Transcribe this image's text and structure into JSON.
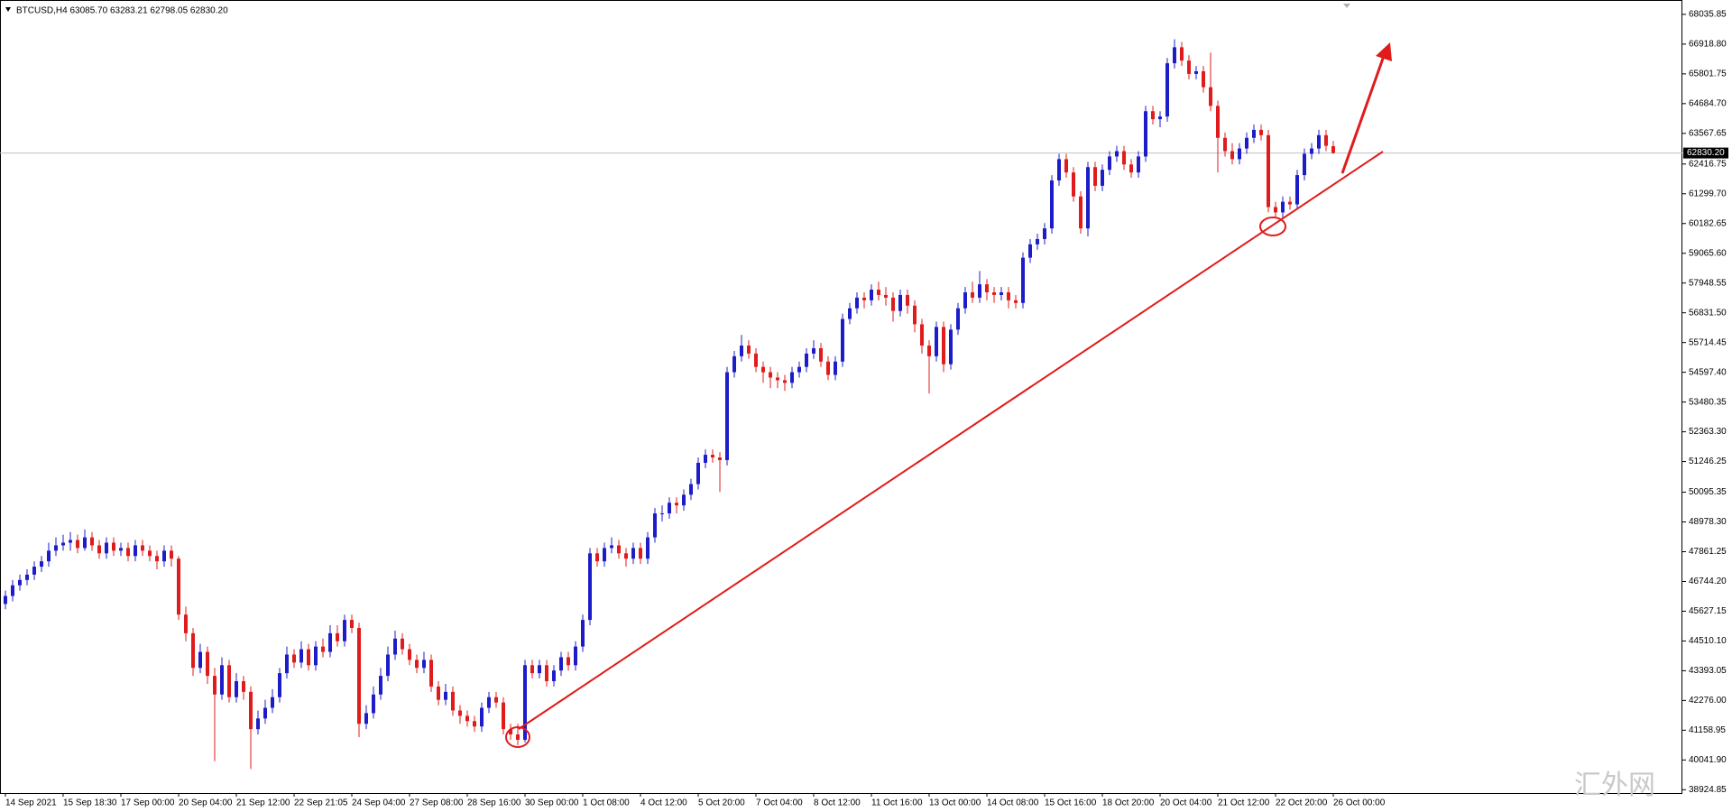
{
  "chart_data": {
    "type": "candlestick",
    "header": "BTCUSD,H4  63085.70 63283.21 62798.05 62830.20",
    "watermark": "汇外网",
    "bull_color": "#1c1cc8",
    "bear_color": "#e01b1b",
    "ylim": [
      38800,
      68575
    ],
    "yticks": [
      38924.85,
      {
        "value": 40041.9,
        "label": "40041.90"
      },
      41158.95,
      {
        "value": 42276,
        "label": "42276.00"
      },
      43393.05,
      {
        "value": 44510.1,
        "label": "44510.10"
      },
      45627.15,
      {
        "value": 46744.2,
        "label": "46744.20"
      },
      47861.25,
      {
        "value": 48978.3,
        "label": "48978.30"
      },
      50095.35,
      {
        "value": 51246.25,
        "label": "51246.25"
      },
      {
        "value": 52363.3,
        "label": "52363.30"
      },
      53480.35,
      {
        "value": 54597.4,
        "label": "54597.40"
      },
      55714.45,
      {
        "value": 56831.5,
        "label": "56831.50"
      },
      57948.55,
      {
        "value": 59065.6,
        "label": "59065.60"
      },
      60182.65,
      {
        "value": 61299.7,
        "label": "61299.70"
      },
      62416.75,
      63567.65,
      {
        "value": 64684.7,
        "label": "64684.70"
      },
      65801.75,
      {
        "value": 66918.8,
        "label": "66918.80"
      },
      68035.85
    ],
    "price_line": {
      "value": 62830.2,
      "label": "62830.20"
    },
    "categories": [
      "14 Sep 2021",
      null,
      null,
      null,
      null,
      null,
      null,
      null,
      "15 Sep 18:30",
      null,
      null,
      null,
      null,
      null,
      null,
      null,
      "17 Sep 00:00",
      null,
      null,
      null,
      null,
      null,
      null,
      null,
      "20 Sep 04:00",
      null,
      null,
      null,
      null,
      null,
      null,
      null,
      "21 Sep 12:00",
      null,
      null,
      null,
      null,
      null,
      null,
      null,
      "22 Sep 21:05",
      null,
      null,
      null,
      null,
      null,
      null,
      null,
      "24 Sep 04:00",
      null,
      null,
      null,
      null,
      null,
      null,
      null,
      "27 Sep 08:00",
      null,
      null,
      null,
      null,
      null,
      null,
      null,
      "28 Sep 16:00",
      null,
      null,
      null,
      null,
      null,
      null,
      null,
      "30 Sep 00:00",
      null,
      null,
      null,
      null,
      null,
      null,
      null,
      "1 Oct 08:00",
      null,
      null,
      null,
      null,
      null,
      null,
      null,
      "4 Oct 12:00",
      null,
      null,
      null,
      null,
      null,
      null,
      null,
      "5 Oct 20:00",
      null,
      null,
      null,
      null,
      null,
      null,
      null,
      "7 Oct 04:00",
      null,
      null,
      null,
      null,
      null,
      null,
      null,
      "8 Oct 12:00",
      null,
      null,
      null,
      null,
      null,
      null,
      null,
      "11 Oct 16:00",
      null,
      null,
      null,
      null,
      null,
      null,
      null,
      "13 Oct 00:00",
      null,
      null,
      null,
      null,
      null,
      null,
      null,
      "14 Oct 08:00",
      null,
      null,
      null,
      null,
      null,
      null,
      null,
      "15 Oct 16:00",
      null,
      null,
      null,
      null,
      null,
      null,
      null,
      "18 Oct 20:00",
      null,
      null,
      null,
      null,
      null,
      null,
      null,
      "20 Oct 04:00",
      null,
      null,
      null,
      null,
      null,
      null,
      null,
      "21 Oct 12:00",
      null,
      null,
      null,
      null,
      null,
      null,
      null,
      "22 Oct 20:00",
      null,
      null,
      null,
      null,
      null,
      null,
      null,
      "26 Oct 00:00"
    ],
    "ohlc": [
      [
        45900,
        46400,
        45700,
        46200
      ],
      [
        46200,
        46800,
        46000,
        46600
      ],
      [
        46600,
        47000,
        46400,
        46800
      ],
      [
        46800,
        47200,
        46600,
        47000
      ],
      [
        47000,
        47500,
        46800,
        47300
      ],
      [
        47300,
        47700,
        47100,
        47500
      ],
      [
        47500,
        48200,
        47300,
        47900
      ],
      [
        47900,
        48400,
        47700,
        48100
      ],
      [
        48100,
        48500,
        47900,
        48200
      ],
      [
        48200,
        48600,
        47900,
        48300
      ],
      [
        48300,
        48500,
        47800,
        48000
      ],
      [
        48000,
        48700,
        47900,
        48400
      ],
      [
        48400,
        48600,
        47900,
        48100
      ],
      [
        48100,
        48300,
        47600,
        47800
      ],
      [
        47800,
        48400,
        47600,
        48200
      ],
      [
        48200,
        48400,
        47700,
        47900
      ],
      [
        47900,
        48200,
        47700,
        48000
      ],
      [
        48000,
        48200,
        47500,
        47700
      ],
      [
        47700,
        48300,
        47500,
        48100
      ],
      [
        48100,
        48300,
        47700,
        47900
      ],
      [
        47900,
        48100,
        47500,
        47700
      ],
      [
        47700,
        47900,
        47200,
        47500
      ],
      [
        47500,
        48100,
        47300,
        47900
      ],
      [
        47900,
        48100,
        47300,
        47600
      ],
      [
        47600,
        47700,
        45300,
        45500
      ],
      [
        45500,
        45800,
        44500,
        44800
      ],
      [
        44800,
        45000,
        43200,
        43500
      ],
      [
        43500,
        44400,
        43300,
        44100
      ],
      [
        44100,
        44300,
        42900,
        43200
      ],
      [
        43200,
        43500,
        40000,
        42500
      ],
      [
        42500,
        43900,
        42300,
        43600
      ],
      [
        43600,
        43800,
        42200,
        42400
      ],
      [
        42400,
        43300,
        42200,
        43000
      ],
      [
        43000,
        43200,
        42300,
        42600
      ],
      [
        42600,
        42800,
        39700,
        41200
      ],
      [
        41200,
        41900,
        41000,
        41600
      ],
      [
        41600,
        42300,
        41400,
        42000
      ],
      [
        42000,
        42700,
        41800,
        42400
      ],
      [
        42400,
        43500,
        42200,
        43300
      ],
      [
        43300,
        44300,
        43100,
        44000
      ],
      [
        44000,
        44200,
        43500,
        43700
      ],
      [
        43700,
        44500,
        43500,
        44200
      ],
      [
        44200,
        44400,
        43400,
        43600
      ],
      [
        43600,
        44500,
        43400,
        44300
      ],
      [
        44300,
        44600,
        43900,
        44100
      ],
      [
        44100,
        45100,
        43900,
        44800
      ],
      [
        44800,
        45100,
        44300,
        44500
      ],
      [
        44500,
        45500,
        44300,
        45300
      ],
      [
        45300,
        45500,
        44800,
        45000
      ],
      [
        45000,
        45200,
        40900,
        41400
      ],
      [
        41400,
        42100,
        41200,
        41800
      ],
      [
        41800,
        42800,
        41600,
        42500
      ],
      [
        42500,
        43500,
        42300,
        43200
      ],
      [
        43200,
        44300,
        43000,
        44000
      ],
      [
        44000,
        44900,
        43800,
        44600
      ],
      [
        44600,
        44800,
        44000,
        44200
      ],
      [
        44200,
        44400,
        43600,
        43800
      ],
      [
        43800,
        44000,
        43300,
        43500
      ],
      [
        43500,
        44100,
        43300,
        43800
      ],
      [
        43800,
        44000,
        42600,
        42800
      ],
      [
        42800,
        43000,
        42100,
        42300
      ],
      [
        42300,
        42900,
        42100,
        42600
      ],
      [
        42600,
        42800,
        41700,
        41900
      ],
      [
        41900,
        42100,
        41400,
        41700
      ],
      [
        41700,
        41900,
        41300,
        41500
      ],
      [
        41500,
        41700,
        41100,
        41300
      ],
      [
        41300,
        42200,
        41100,
        42000
      ],
      [
        42000,
        42600,
        41800,
        42400
      ],
      [
        42400,
        42600,
        42000,
        42200
      ],
      [
        42200,
        42400,
        41000,
        41200
      ],
      [
        41200,
        41400,
        40800,
        41000
      ],
      [
        41000,
        41400,
        40600,
        40800
      ],
      [
        40800,
        43800,
        40700,
        43600
      ],
      [
        43600,
        43800,
        43100,
        43300
      ],
      [
        43300,
        43800,
        43100,
        43600
      ],
      [
        43600,
        43800,
        42800,
        43000
      ],
      [
        43000,
        43600,
        42800,
        43400
      ],
      [
        43400,
        44100,
        43200,
        43900
      ],
      [
        43900,
        44100,
        43400,
        43600
      ],
      [
        43600,
        44500,
        43400,
        44300
      ],
      [
        44300,
        45500,
        44100,
        45300
      ],
      [
        45300,
        48000,
        45100,
        47800
      ],
      [
        47800,
        48000,
        47300,
        47500
      ],
      [
        47500,
        48200,
        47300,
        48000
      ],
      [
        48000,
        48400,
        47800,
        48100
      ],
      [
        48100,
        48300,
        47600,
        47800
      ],
      [
        47800,
        48000,
        47300,
        47600
      ],
      [
        47600,
        48200,
        47400,
        48000
      ],
      [
        48000,
        48200,
        47400,
        47600
      ],
      [
        47600,
        48600,
        47400,
        48400
      ],
      [
        48400,
        49500,
        48200,
        49300
      ],
      [
        49300,
        49600,
        49000,
        49300
      ],
      [
        49300,
        49900,
        49100,
        49700
      ],
      [
        49700,
        49900,
        49300,
        49600
      ],
      [
        49600,
        50200,
        49400,
        50000
      ],
      [
        50000,
        50600,
        49800,
        50400
      ],
      [
        50400,
        51400,
        50200,
        51200
      ],
      [
        51200,
        51700,
        51000,
        51500
      ],
      [
        51500,
        51700,
        51200,
        51400
      ],
      [
        51400,
        51600,
        50100,
        51300
      ],
      [
        51300,
        54800,
        51100,
        54600
      ],
      [
        54600,
        55400,
        54400,
        55200
      ],
      [
        55200,
        56000,
        55000,
        55600
      ],
      [
        55600,
        55800,
        55100,
        55300
      ],
      [
        55300,
        55500,
        54600,
        54800
      ],
      [
        54800,
        55000,
        54200,
        54600
      ],
      [
        54600,
        54800,
        54000,
        54400
      ],
      [
        54400,
        54600,
        54000,
        54300
      ],
      [
        54300,
        54500,
        53900,
        54200
      ],
      [
        54200,
        54800,
        54000,
        54600
      ],
      [
        54600,
        55000,
        54400,
        54800
      ],
      [
        54800,
        55500,
        54600,
        55300
      ],
      [
        55300,
        55800,
        55100,
        55500
      ],
      [
        55500,
        55700,
        54800,
        55000
      ],
      [
        55000,
        55200,
        54300,
        54500
      ],
      [
        54500,
        55200,
        54300,
        55000
      ],
      [
        55000,
        56800,
        54800,
        56600
      ],
      [
        56600,
        57200,
        56400,
        57000
      ],
      [
        57000,
        57600,
        56800,
        57400
      ],
      [
        57400,
        57600,
        57000,
        57300
      ],
      [
        57300,
        57900,
        57100,
        57700
      ],
      [
        57700,
        58000,
        57300,
        57500
      ],
      [
        57500,
        57800,
        57100,
        57400
      ],
      [
        57400,
        57600,
        56500,
        56900
      ],
      [
        56900,
        57700,
        56700,
        57500
      ],
      [
        57500,
        57700,
        56800,
        57100
      ],
      [
        57100,
        57300,
        56100,
        56400
      ],
      [
        56400,
        56600,
        55300,
        55600
      ],
      [
        55600,
        55800,
        53800,
        55200
      ],
      [
        55200,
        56500,
        55000,
        56300
      ],
      [
        56300,
        56500,
        54600,
        54900
      ],
      [
        54900,
        56400,
        54700,
        56200
      ],
      [
        56200,
        57200,
        56000,
        57000
      ],
      [
        57000,
        57800,
        56800,
        57600
      ],
      [
        57600,
        58000,
        57200,
        57400
      ],
      [
        57400,
        58400,
        57200,
        57900
      ],
      [
        57900,
        58100,
        57300,
        57600
      ],
      [
        57600,
        57800,
        57200,
        57500
      ],
      [
        57500,
        57800,
        57300,
        57600
      ],
      [
        57600,
        57800,
        57000,
        57300
      ],
      [
        57300,
        57500,
        57000,
        57200
      ],
      [
        57200,
        59100,
        57000,
        58900
      ],
      [
        58900,
        59600,
        58700,
        59400
      ],
      [
        59400,
        59800,
        59200,
        59600
      ],
      [
        59600,
        60200,
        59400,
        60000
      ],
      [
        60000,
        62000,
        59800,
        61800
      ],
      [
        61800,
        62800,
        61600,
        62600
      ],
      [
        62600,
        62800,
        61900,
        62100
      ],
      [
        62100,
        62300,
        61000,
        61200
      ],
      [
        61200,
        61400,
        59800,
        60000
      ],
      [
        60000,
        62500,
        59700,
        62300
      ],
      [
        62300,
        62500,
        61400,
        61600
      ],
      [
        61600,
        62400,
        61400,
        62200
      ],
      [
        62200,
        62900,
        62000,
        62700
      ],
      [
        62700,
        63100,
        62500,
        62900
      ],
      [
        62900,
        63100,
        62200,
        62400
      ],
      [
        62400,
        62600,
        61900,
        62100
      ],
      [
        62100,
        62900,
        61900,
        62700
      ],
      [
        62700,
        64600,
        62500,
        64400
      ],
      [
        64400,
        64600,
        63900,
        64100
      ],
      [
        64100,
        64400,
        63800,
        64200
      ],
      [
        64200,
        66400,
        64000,
        66200
      ],
      [
        66200,
        67100,
        66000,
        66800
      ],
      [
        66800,
        67000,
        66100,
        66300
      ],
      [
        66300,
        66500,
        65600,
        65800
      ],
      [
        65800,
        66100,
        65600,
        65900
      ],
      [
        65900,
        66100,
        65100,
        65300
      ],
      [
        65300,
        66600,
        64400,
        64600
      ],
      [
        64600,
        64800,
        62100,
        63400
      ],
      [
        63400,
        63600,
        62700,
        62900
      ],
      [
        62900,
        63200,
        62400,
        62600
      ],
      [
        62600,
        63200,
        62400,
        63000
      ],
      [
        63000,
        63600,
        62800,
        63400
      ],
      [
        63400,
        63900,
        63200,
        63700
      ],
      [
        63700,
        63900,
        63300,
        63500
      ],
      [
        63500,
        63700,
        60600,
        60800
      ],
      [
        60800,
        61000,
        60400,
        60600
      ],
      [
        60600,
        61200,
        60400,
        61000
      ],
      [
        61000,
        61200,
        60700,
        60900
      ],
      [
        60900,
        62200,
        60700,
        62000
      ],
      [
        62000,
        63000,
        61800,
        62800
      ],
      [
        62800,
        63200,
        62600,
        63000
      ],
      [
        63000,
        63700,
        62800,
        63500
      ],
      [
        63500,
        63700,
        62900,
        63100
      ],
      [
        63085.7,
        63283.21,
        62798.05,
        62830.2
      ]
    ]
  }
}
